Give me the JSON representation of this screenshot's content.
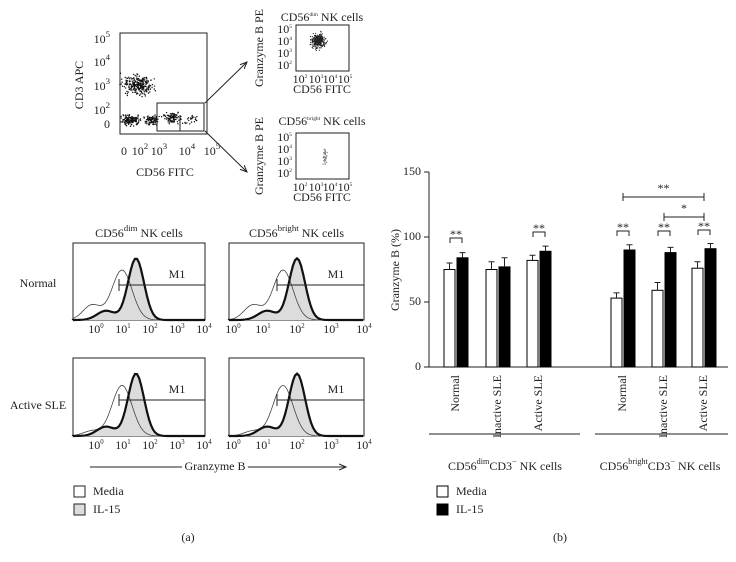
{
  "panel_a": {
    "dot_plot": {
      "y_label": "CD3 APC",
      "x_label": "CD56 FITC",
      "yticks": [
        [
          "10",
          "5"
        ],
        [
          "10",
          "4"
        ],
        [
          "10",
          "3"
        ],
        [
          "10",
          "2"
        ],
        [
          "0"
        ]
      ],
      "xticks": [
        [
          "0"
        ],
        [
          "10",
          "2"
        ],
        [
          "10",
          "3"
        ],
        [
          "10",
          "4"
        ],
        [
          "10",
          "5"
        ]
      ]
    },
    "gated": [
      {
        "title": [
          "CD56",
          "dim",
          " NK cells"
        ],
        "y_label": "Granzyme B PE",
        "x_label": "CD56 FITC",
        "yticks": [
          [
            "10",
            "5"
          ],
          [
            "10",
            "4"
          ],
          [
            "10",
            "3"
          ],
          [
            "10",
            "2"
          ]
        ],
        "xticks": [
          [
            "10",
            "2"
          ],
          [
            "10",
            "3"
          ],
          [
            "10",
            "4"
          ],
          [
            "10",
            "5"
          ]
        ]
      },
      {
        "title": [
          "CD56",
          "bright",
          " NK cells"
        ],
        "y_label": "Granzyme B PE",
        "x_label": "CD56 FITC",
        "yticks": [
          [
            "10",
            "5"
          ],
          [
            "10",
            "4"
          ],
          [
            "10",
            "3"
          ],
          [
            "10",
            "2"
          ]
        ],
        "xticks": [
          [
            "10",
            "2"
          ],
          [
            "10",
            "3"
          ],
          [
            "10",
            "4"
          ],
          [
            "10",
            "5"
          ]
        ]
      }
    ],
    "histograms": {
      "columns": [
        [
          "CD56",
          "dim",
          " NK cells"
        ],
        [
          "CD56",
          "bright",
          " NK cells"
        ]
      ],
      "rows": [
        "Normal",
        "Active SLE"
      ],
      "gate": "M1",
      "xticks": [
        [
          "10",
          "0"
        ],
        [
          "10",
          "1"
        ],
        [
          "10",
          "2"
        ],
        [
          "10",
          "3"
        ],
        [
          "10",
          "4"
        ]
      ],
      "x_label": "Granzyme B"
    },
    "legend": [
      "Media",
      "IL-15"
    ],
    "label": "(a)"
  },
  "chart_data": {
    "type": "bar",
    "y_label": "Granzyme B (%)",
    "categories": [
      "Normal",
      "Inactive SLE",
      "Active SLE",
      "Normal",
      "Inactive SLE",
      "Active SLE"
    ],
    "groups": [
      [
        "CD56",
        "dim",
        "CD3",
        "−",
        " NK cells"
      ],
      [
        "CD56",
        "bright",
        "CD3",
        "−",
        " NK cells"
      ]
    ],
    "series": [
      {
        "name": "Media",
        "color": "#ffffff",
        "values": [
          75,
          75,
          82,
          53,
          59,
          76
        ],
        "errors": [
          5,
          6,
          4,
          4,
          6,
          5
        ]
      },
      {
        "name": "IL-15",
        "color": "#000000",
        "values": [
          84,
          77,
          89,
          90,
          88,
          91
        ],
        "errors": [
          4,
          7,
          4,
          4,
          4,
          4
        ]
      }
    ],
    "significance": [
      "**",
      "**",
      "**",
      "**",
      "**",
      "**",
      "*"
    ],
    "ylim": [
      0,
      150
    ],
    "yticks": [
      0,
      50,
      100,
      150
    ],
    "label": "(b)"
  }
}
